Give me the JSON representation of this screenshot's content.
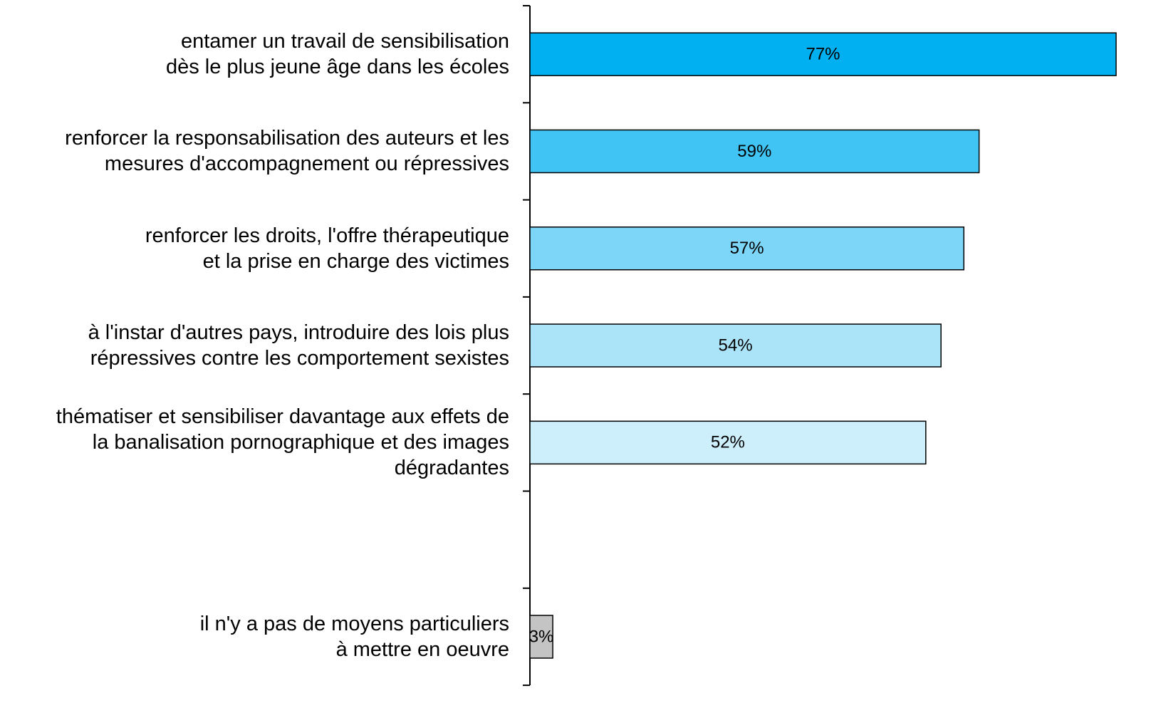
{
  "chart_data": {
    "type": "bar",
    "orientation": "horizontal",
    "categories": [
      "entamer un travail de sensibilisation\ndès le plus jeune âge dans les écoles",
      "renforcer la responsabilisation des auteurs et les\nmesures d'accompagnement ou répressives",
      "renforcer les droits, l'offre thérapeutique\net la prise en charge des victimes",
      "à l'instar d'autres pays, introduire des lois plus\nrépressives contre les comportement sexistes",
      "thématiser et sensibiliser davantage aux effets de\nla banalisation pornographique et des images\ndégradantes",
      null,
      "il n'y a pas de moyens particuliers\nà mettre en oeuvre"
    ],
    "values": [
      77,
      59,
      57,
      54,
      52,
      null,
      3
    ],
    "value_labels": [
      "77%",
      "59%",
      "57%",
      "54%",
      "52%",
      null,
      "3%"
    ],
    "colors": [
      "#00b0f0",
      "#40c4f4",
      "#7dd5f7",
      "#abe3f9",
      "#cdeefb",
      null,
      "#c4c4c4"
    ],
    "xlim": [
      0,
      77
    ]
  }
}
